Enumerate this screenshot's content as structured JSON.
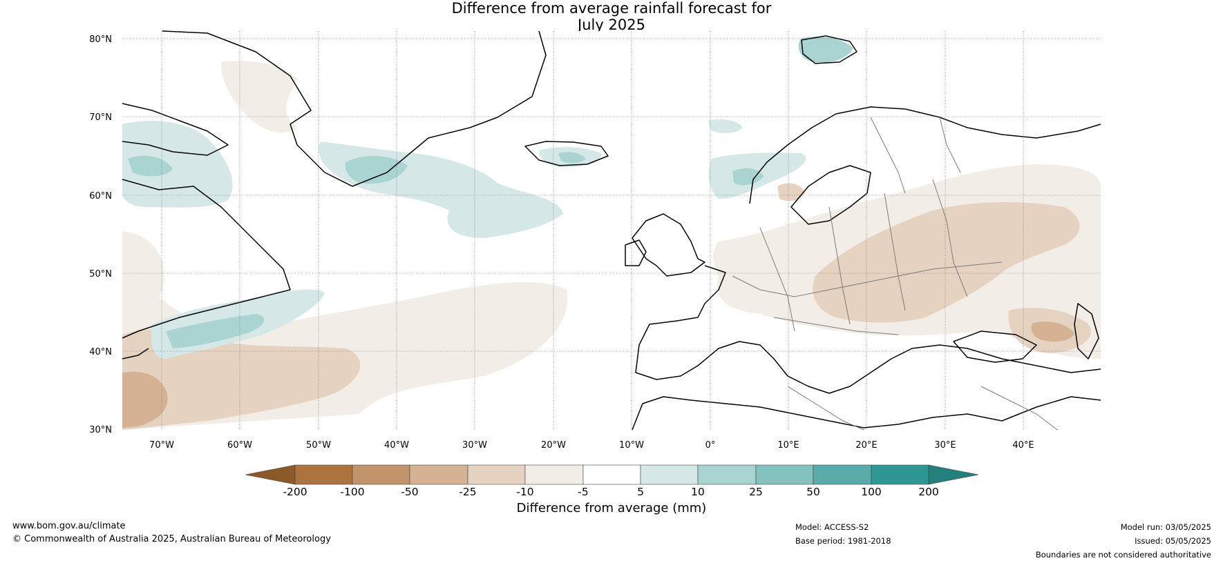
{
  "title": {
    "line1": "Difference from average rainfall forecast for",
    "line2": "July 2025"
  },
  "map": {
    "lat_labels": [
      "80°N",
      "70°N",
      "60°N",
      "50°N",
      "40°N",
      "30°N"
    ],
    "lon_labels": [
      "70°W",
      "60°W",
      "50°W",
      "40°W",
      "30°W",
      "20°W",
      "10°W",
      "0°",
      "10°E",
      "20°E",
      "30°E",
      "40°E"
    ],
    "lat_range": [
      30,
      80
    ],
    "lon_range": [
      -75,
      50
    ],
    "gridlines": true,
    "colors": {
      "dry_200": "#8c5a28",
      "dry_100": "#ad733e",
      "dry_50": "#c3946b",
      "dry_25": "#d4b293",
      "dry_10": "#e6d2c1",
      "dry_5": "#f2ede7",
      "neutral": "#ffffff",
      "wet_5": "#d5e8e7",
      "wet_10": "#aad4d2",
      "wet_25": "#84c2c0",
      "wet_50": "#5aacaa",
      "wet_100": "#2e9793",
      "wet_200": "#23807c",
      "coast": "#000000",
      "border": "#7a7a7a"
    }
  },
  "colorbar": {
    "title": "Difference from average (mm)",
    "ticks": [
      "-200",
      "-100",
      "-50",
      "-25",
      "-10",
      "-5",
      "5",
      "10",
      "25",
      "50",
      "100",
      "200"
    ]
  },
  "footer": {
    "website": "www.bom.gov.au/climate",
    "copyright": "© Commonwealth of Australia 2025, Australian Bureau of Meteorology",
    "model": "Model: ACCESS-S2",
    "base_period": "Base period: 1981-2018",
    "model_run": "Model run: 03/05/2025",
    "issued": "Issued: 05/05/2025",
    "disclaimer": "Boundaries are not considered authoritative"
  }
}
